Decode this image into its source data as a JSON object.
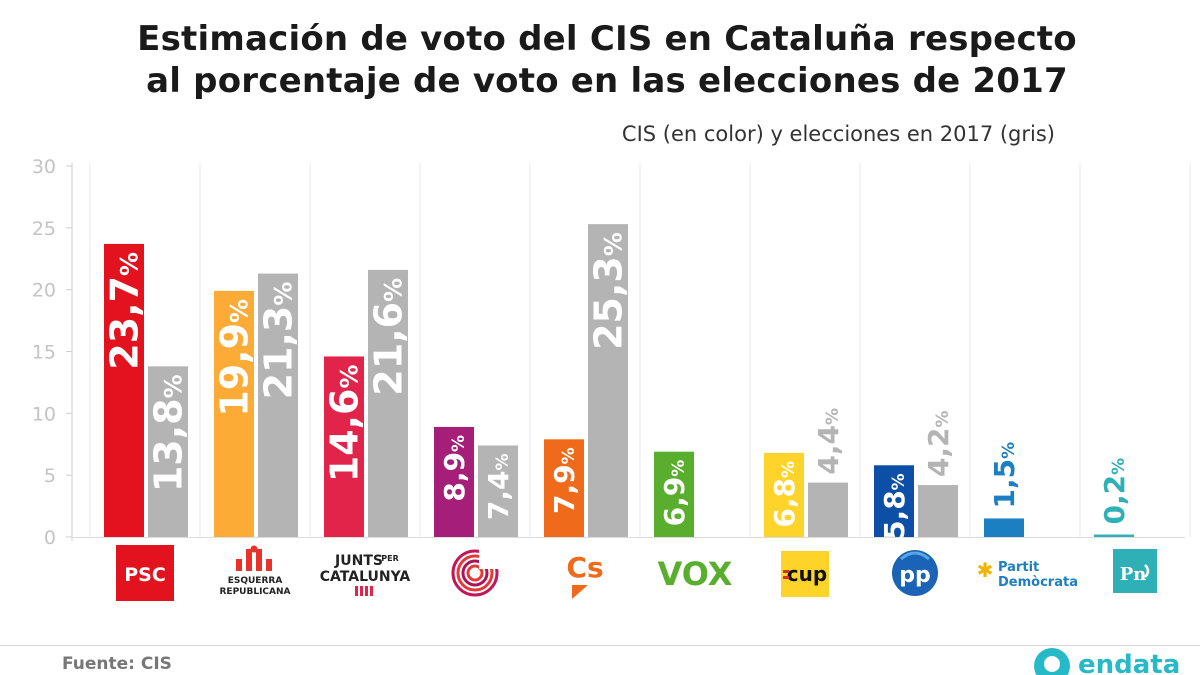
{
  "header": {
    "title_line1": "Estimación de voto del CIS en Cataluña respecto",
    "title_line2": "al porcentaje de voto en las elecciones de 2017",
    "subtitle": "CIS (en color) y elecciones en 2017 (gris)"
  },
  "footer": {
    "source": "Fuente: CIS",
    "brand": "endata"
  },
  "chart_data": {
    "type": "bar",
    "title": "Estimación de voto del CIS en Cataluña respecto al porcentaje de voto en las elecciones de 2017",
    "subtitle": "CIS (en color) y elecciones en 2017 (gris)",
    "xlabel": "",
    "ylabel": "",
    "ylim": [
      0,
      30
    ],
    "yticks": [
      0,
      5,
      10,
      15,
      20,
      25,
      30
    ],
    "grid": "vertical separators",
    "categories": [
      "PSC",
      "ESQUERRA REPUBLICANA",
      "JUNTS PER CATALUNYA",
      "En Comú Podem",
      "Cs",
      "VOX",
      "CUP",
      "PP",
      "Partit Demòcrata",
      "PNC"
    ],
    "logo_text": {
      "psc": "PSC",
      "erc": [
        "ESQUERRA",
        "REPUBLICANA"
      ],
      "junts": [
        "JUNTS",
        "PER",
        "CATALUNYA"
      ],
      "cs": "Cs",
      "vox": "VOX",
      "cup": "cup",
      "pp": "pp",
      "pdecat": [
        "Partit",
        "Demòcrata"
      ],
      "pnc": "Pn"
    },
    "series": [
      {
        "name": "CIS",
        "values": [
          23.7,
          19.9,
          14.6,
          8.9,
          7.9,
          6.9,
          6.8,
          5.8,
          1.5,
          0.2
        ],
        "labels": [
          "23,7%",
          "19,9%",
          "14,6%",
          "8,9%",
          "7,9%",
          "6,9%",
          "6,8%",
          "5,8%",
          "1,5%",
          "0,2%"
        ],
        "colors": [
          "#e2131f",
          "#fbab36",
          "#e2244b",
          "#a51f78",
          "#ef6a1b",
          "#5aae2e",
          "#ffd42a",
          "#0d4ea6",
          "#1b7fc1",
          "#2fb0b6"
        ]
      },
      {
        "name": "Elecciones 2017",
        "values": [
          13.8,
          21.3,
          21.6,
          7.4,
          25.3,
          null,
          4.4,
          4.2,
          null,
          null
        ],
        "labels": [
          "13,8%",
          "21,3%",
          "21,6%",
          "7,4%",
          "25,3%",
          null,
          "4,4%",
          "4,2%",
          null,
          null
        ],
        "color": "#b4b4b4"
      }
    ]
  }
}
